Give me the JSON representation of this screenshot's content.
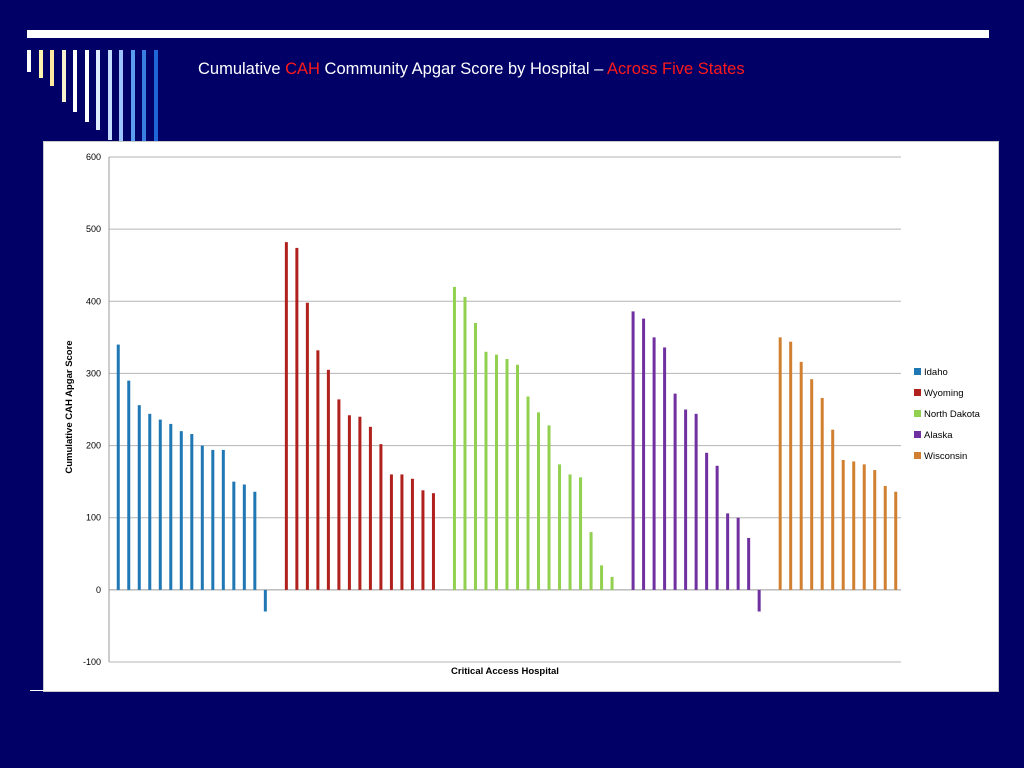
{
  "slide": {
    "title_part1": "Cumulative ",
    "title_part2": "CAH",
    "title_part3": " Community Apgar Score by Hospital – ",
    "title_part4": "Across Five States",
    "accent_color": "#ff1a1a",
    "background_color": "#000066"
  },
  "decor": {
    "bar_colors": [
      "#ffffff",
      "#fff3b0",
      "#ffe8a0",
      "#f5f0d0",
      "#ffffff",
      "#ffffff",
      "#e0ecff",
      "#c6dcff",
      "#9cc3ff",
      "#5a9cf0",
      "#3a7de0",
      "#1f66d8"
    ]
  },
  "chart_data": {
    "type": "bar",
    "title": "",
    "xlabel": "Critical Access Hospital",
    "ylabel": "Cumulative CAH Apgar Score",
    "ylim": [
      -100,
      600
    ],
    "yticks": [
      -100,
      0,
      100,
      200,
      300,
      400,
      500,
      600
    ],
    "grid": true,
    "legend_position": "right",
    "series": [
      {
        "name": "Idaho",
        "color": "#1f77b4",
        "values": [
          340,
          290,
          256,
          244,
          236,
          230,
          220,
          216,
          200,
          194,
          194,
          150,
          146,
          136,
          -30
        ]
      },
      {
        "name": "Wyoming",
        "color": "#b0201c",
        "values": [
          482,
          474,
          398,
          332,
          305,
          264,
          242,
          240,
          226,
          202,
          160,
          160,
          154,
          138,
          134
        ]
      },
      {
        "name": "North Dakota",
        "color": "#92d050",
        "values": [
          420,
          406,
          370,
          330,
          326,
          320,
          312,
          268,
          246,
          228,
          174,
          160,
          156,
          80,
          34,
          18
        ]
      },
      {
        "name": "Alaska",
        "color": "#7030a0",
        "values": [
          386,
          376,
          350,
          336,
          272,
          250,
          244,
          190,
          172,
          106,
          100,
          72,
          -30
        ]
      },
      {
        "name": "Wisconsin",
        "color": "#d08030",
        "values": [
          350,
          344,
          316,
          292,
          266,
          222,
          180,
          178,
          174,
          166,
          144,
          136
        ]
      }
    ]
  }
}
